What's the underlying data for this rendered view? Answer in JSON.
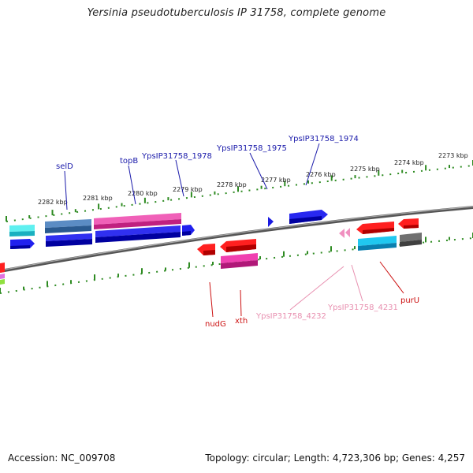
{
  "title": "Yersinia pseudotuberculosis IP 31758, complete genome",
  "footer": {
    "accession": "Accession: NC_009708",
    "summary": "Topology: circular; Length: 4,723,306 bp; Genes: 4,257"
  },
  "colors": {
    "ruler": "#2e8b22",
    "backbone": "#777777",
    "forward_label": "#1a1aaa",
    "reverse_label": "#cc1111",
    "pseudo_label": "#e890b0"
  },
  "kbp_ticks": [
    "2282 kbp",
    "2281 kbp",
    "2280 kbp",
    "2279 kbp",
    "2278 kbp",
    "2277 kbp",
    "2276 kbp",
    "2275 kbp",
    "2274 kbp",
    "2273 kbp"
  ],
  "forward_labels": [
    "selD",
    "topB",
    "YpsIP31758_1978",
    "YpsIP31758_1975",
    "YpsIP31758_1974"
  ],
  "reverse_labels": [
    "nudG",
    "xth",
    "YpsIP31758_4232",
    "YpsIP31758_4231",
    "purU"
  ]
}
